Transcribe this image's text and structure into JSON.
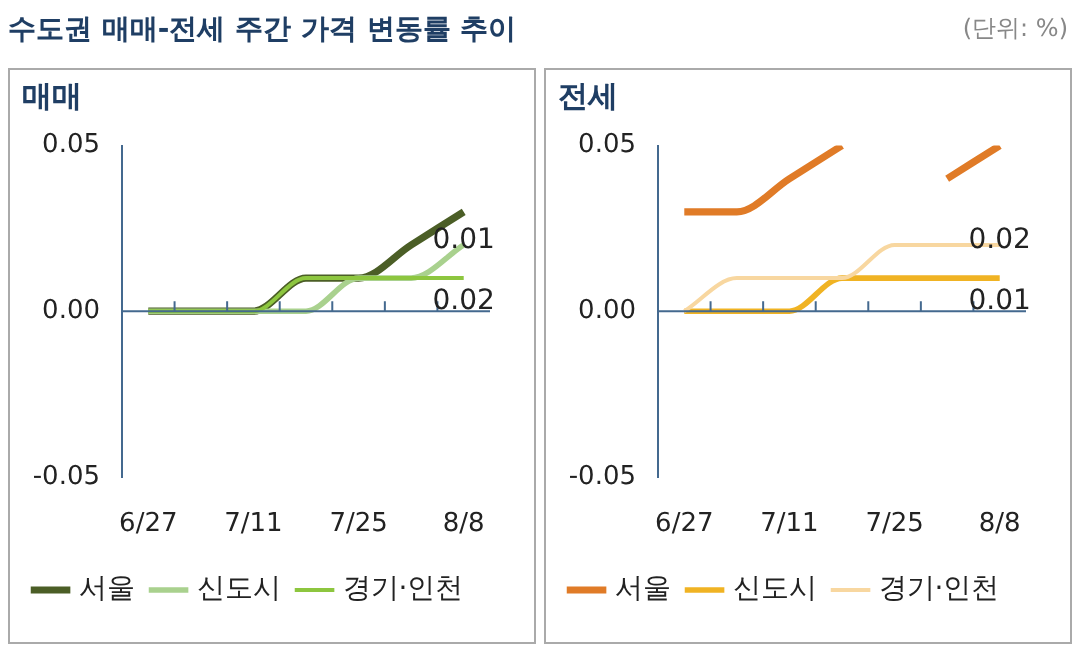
{
  "chart_data": [
    {
      "type": "other",
      "title": "수도권 매매-전세 주간 가격 변동률 추이",
      "annotations": [
        "(단위: %)"
      ]
    },
    {
      "type": "line",
      "title": "매매",
      "categories": [
        "6/27",
        null,
        "7/11",
        null,
        "7/25",
        null,
        "8/8"
      ],
      "series": [
        {
          "name": "서울",
          "color": "#4b5e26",
          "values": [
            0,
            0,
            0,
            0.01,
            0.01,
            0.02,
            0.03
          ]
        },
        {
          "name": "신도시",
          "color": "#a9d18e",
          "values": [
            0,
            0,
            0,
            0,
            0.01,
            0.01,
            0.02
          ]
        },
        {
          "name": "경기·인천",
          "color": "#8dc63f",
          "values": [
            0,
            0,
            0,
            0.01,
            0.01,
            0.01,
            0.01
          ]
        }
      ],
      "ylim": [
        -0.05,
        0.05
      ],
      "yticks": [
        {
          "value": -0.05,
          "label": "-0.05"
        },
        {
          "value": 0,
          "label": "0.00"
        },
        {
          "value": 0.05,
          "label": "0.05"
        }
      ],
      "ref_lines": [
        {
          "axis": "y",
          "value": 0,
          "color": "#44698f"
        }
      ],
      "annotations": [
        "0.01",
        "0.02"
      ],
      "legend": "bottom"
    },
    {
      "type": "line",
      "title": "전세",
      "categories": [
        "6/27",
        null,
        "7/11",
        null,
        "7/25",
        null,
        "8/8"
      ],
      "series": [
        {
          "name": "서울",
          "color": "#e07b27",
          "values": [
            0.03,
            0.03,
            0.04,
            0.05,
            null,
            0.04,
            0.05
          ]
        },
        {
          "name": "신도시",
          "color": "#f0b323",
          "values": [
            0,
            0,
            0,
            0.01,
            0.01,
            0.01,
            0.01
          ]
        },
        {
          "name": "경기·인천",
          "color": "#f8d7a0",
          "values": [
            0,
            0.01,
            0.01,
            0.01,
            0.02,
            0.02,
            0.02
          ]
        }
      ],
      "ylim": [
        -0.05,
        0.05
      ],
      "yticks": [
        {
          "value": -0.05,
          "label": "-0.05"
        },
        {
          "value": 0,
          "label": "0.00"
        },
        {
          "value": 0.05,
          "label": "0.05"
        }
      ],
      "ref_lines": [
        {
          "axis": "y",
          "value": 0,
          "color": "#44698f"
        }
      ],
      "annotations": [
        "0.02",
        "0.01"
      ],
      "legend": "bottom"
    }
  ]
}
